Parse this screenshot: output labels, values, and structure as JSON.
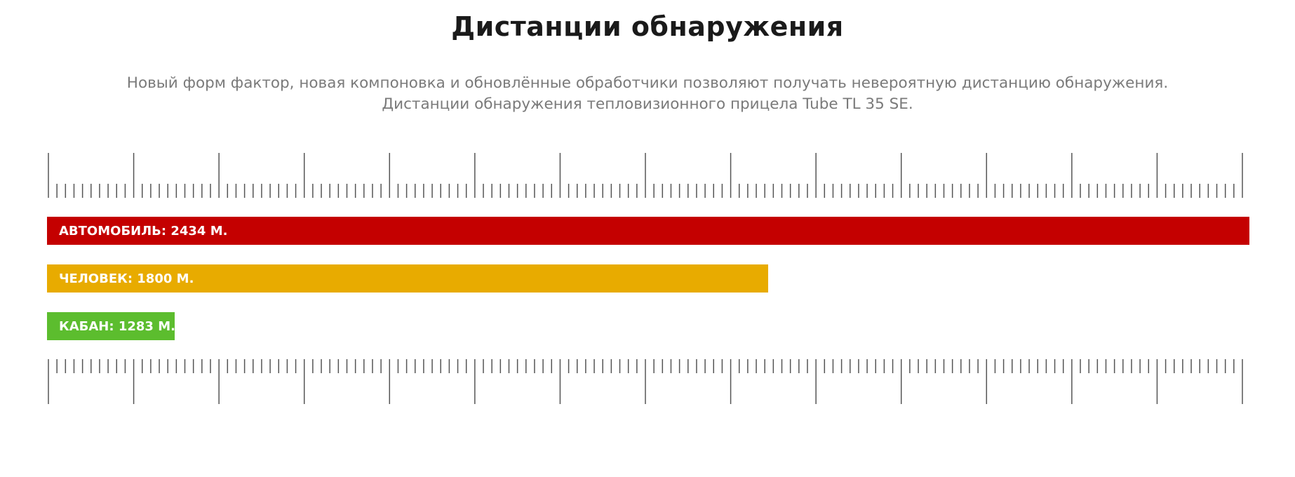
{
  "header": {
    "title": "Дистанции обнаружения",
    "subtitle_lines": [
      "Новый форм фактор, новая компоновка и обновлённые обработчики позволяют получать невероятную дистанцию обнаружения.",
      "Дистанции обнаружения тепловизионного прицела Tube TL 35 SE."
    ]
  },
  "chart_data": {
    "type": "bar",
    "orientation": "horizontal",
    "categories": [
      "АВТОМОБИЛЬ",
      "ЧЕЛОВЕК",
      "КАБАН"
    ],
    "values": [
      2434,
      1800,
      1283
    ],
    "labels": [
      "АВТОМОБИЛЬ: 2434 М.",
      "ЧЕЛОВЕК: 1800 М.",
      "КАБАН: 1283 М."
    ],
    "colors": [
      "#c40000",
      "#e8ab00",
      "#5cbd2e"
    ],
    "unit": "м",
    "ruler": {
      "major_divisions": 14,
      "minor_per_major": 10,
      "tick_color": "#555555"
    }
  }
}
